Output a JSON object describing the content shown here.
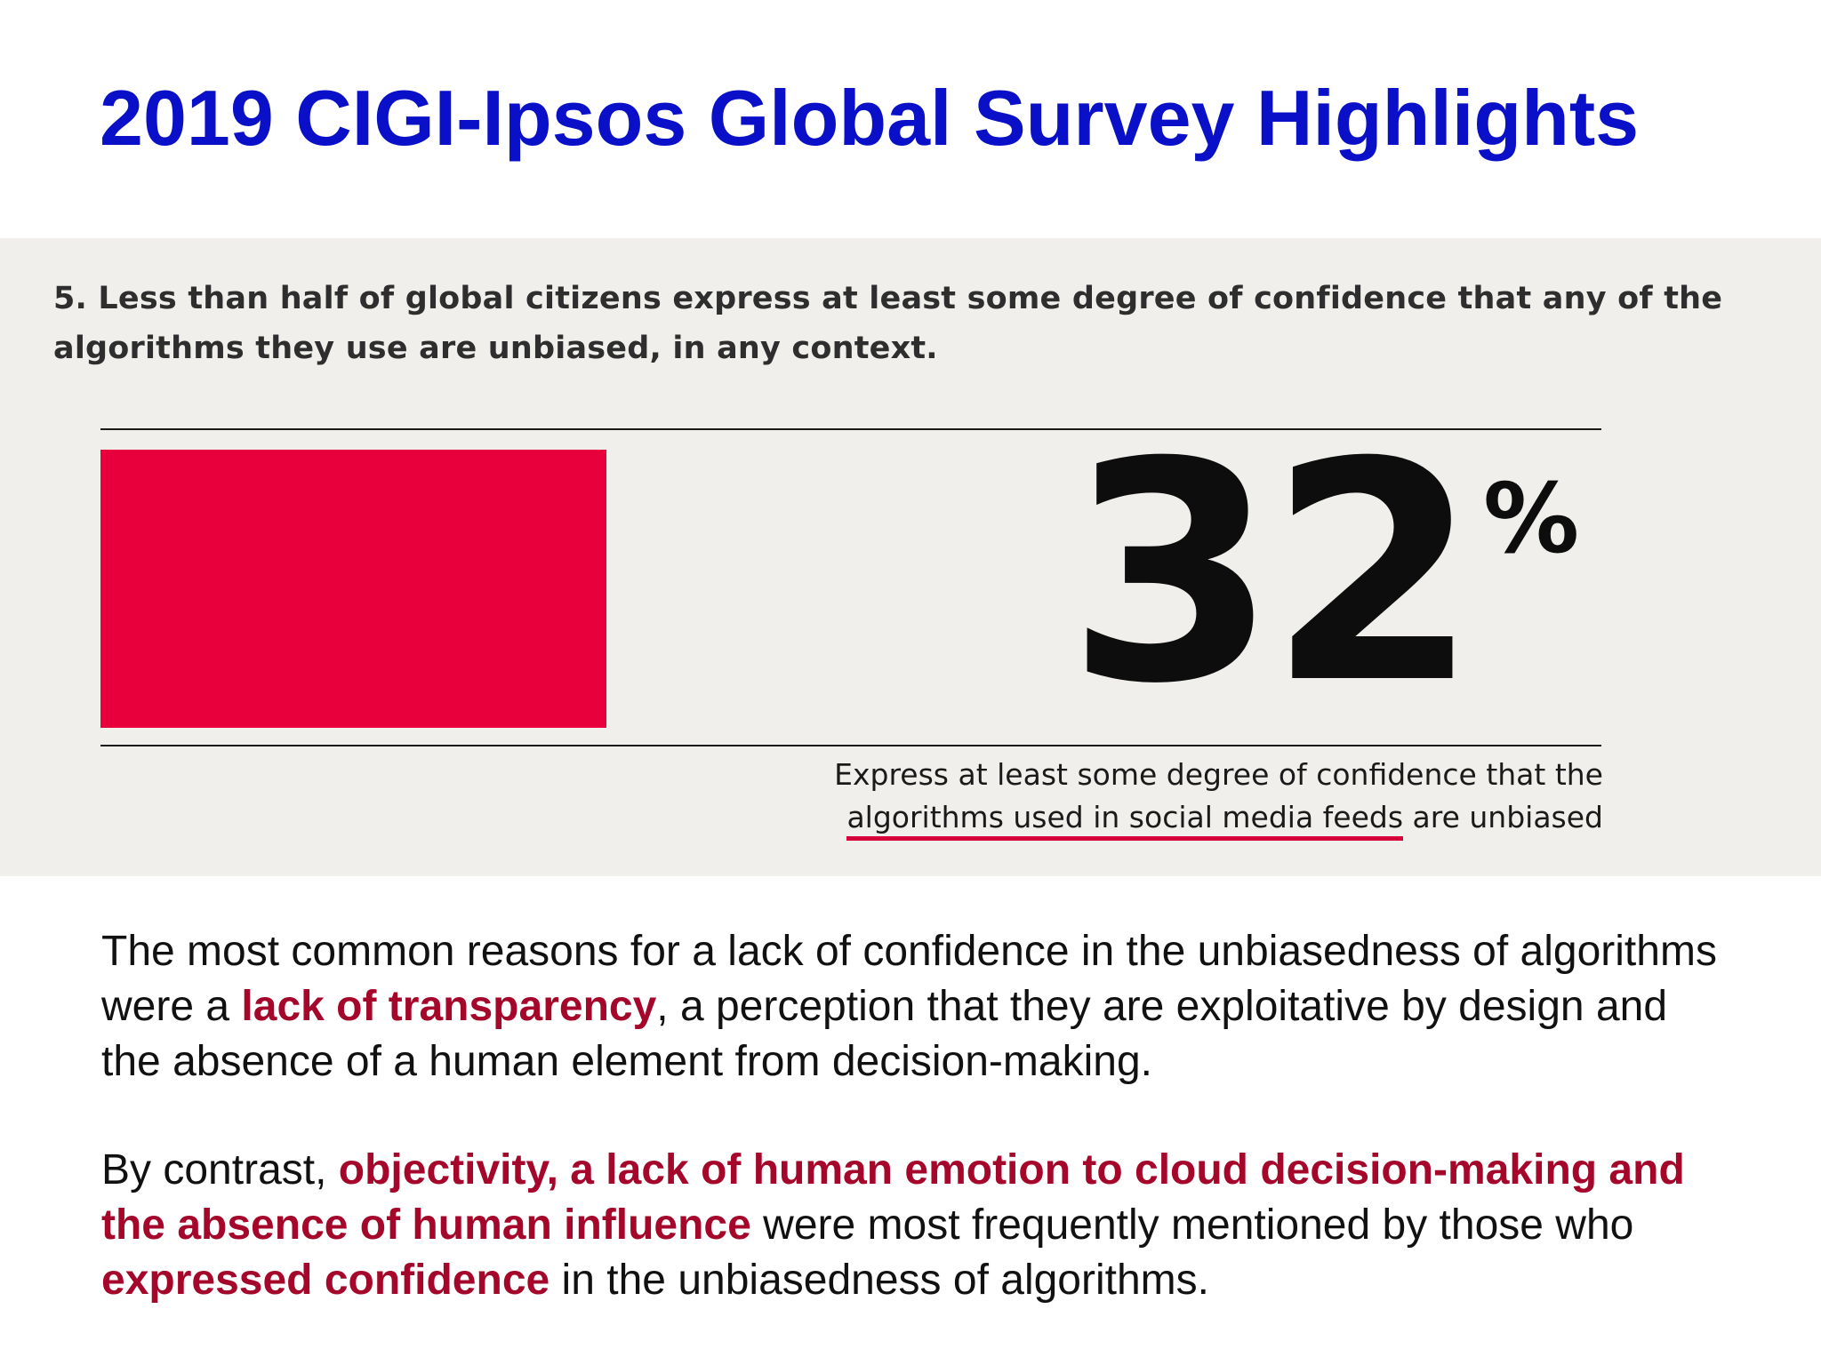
{
  "title": "2019 CIGI-Ipsos Global Survey Highlights",
  "infographic": {
    "finding": "5. Less than half of global citizens express at least some degree of confidence that any of the algorithms they use are unbiased, in any context.",
    "stat": {
      "value": "32",
      "unit": "%",
      "bar_color": "#e8003d"
    },
    "caption": {
      "line1": "Express at least some degree of confidence that the",
      "highlight": "algorithms used in social media feeds",
      "line2_rest": " are unbiased"
    }
  },
  "paragraphs": {
    "p1": {
      "before": "The most common reasons for a lack of confidence in the unbiasedness of algorithms were a ",
      "emph": "lack of transparency",
      "after": ", a perception that they are exploitative by design and the absence of a human element from decision-making."
    },
    "p2": {
      "before": "By contrast, ",
      "emph1": "objectivity, a lack of human emotion to cloud decision-making and the absence of human influence",
      "middle": " were most frequently mentioned by those who ",
      "emph2": "expressed confidence",
      "after": " in the unbiasedness of algorithms."
    }
  },
  "colors": {
    "title": "#0a10c8",
    "emphasis": "#a5072b",
    "panel_background": "#f0efec"
  }
}
